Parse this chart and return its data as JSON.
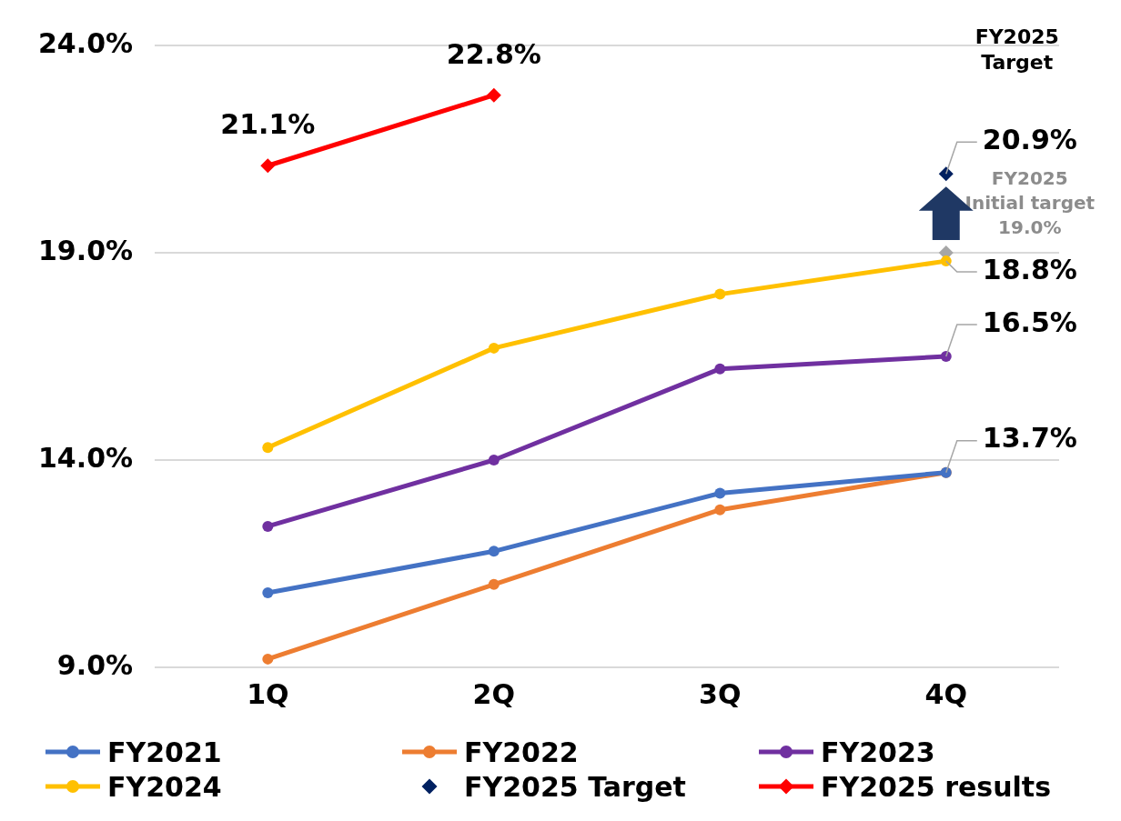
{
  "chart_data": {
    "type": "line",
    "categories": [
      "1Q",
      "2Q",
      "3Q",
      "4Q"
    ],
    "ylim": [
      9,
      24
    ],
    "yticks": [
      {
        "value": 9,
        "label": "9.0%"
      },
      {
        "value": 14,
        "label": "14.0%"
      },
      {
        "value": 19,
        "label": "19.0%"
      },
      {
        "value": 24,
        "label": "24.0%"
      }
    ],
    "grid": "y",
    "legend": "bottom",
    "marker": "circle",
    "line_style": "solid",
    "series": [
      {
        "name": "FY2021",
        "color": "#4472c4",
        "values": [
          10.8,
          11.8,
          13.2,
          13.7
        ],
        "value_labels": [
          null,
          null,
          null,
          null
        ]
      },
      {
        "name": "FY2022",
        "color": "#ed7d31",
        "values": [
          9.2,
          11.0,
          12.8,
          13.7
        ],
        "value_labels": [
          null,
          null,
          null,
          "13.7%"
        ]
      },
      {
        "name": "FY2023",
        "color": "#7030a0",
        "values": [
          12.4,
          14.0,
          16.2,
          16.5
        ],
        "value_labels": [
          null,
          null,
          null,
          "16.5%"
        ]
      },
      {
        "name": "FY2024",
        "color": "#ffc000",
        "values": [
          14.3,
          16.7,
          18.0,
          18.8
        ],
        "value_labels": [
          null,
          null,
          null,
          "18.8%"
        ]
      },
      {
        "name": "FY2025 Target",
        "type": "scatter",
        "marker": "diamond",
        "color": "#002060",
        "values": [
          null,
          null,
          null,
          20.9
        ],
        "value_labels": [
          null,
          null,
          null,
          "20.9%"
        ]
      },
      {
        "name": "FY2025 results",
        "marker": "diamond",
        "color": "#ff0000",
        "values": [
          21.1,
          22.8,
          null,
          null
        ],
        "value_labels": [
          "21.1%",
          "22.8%",
          null,
          null
        ]
      },
      {
        "type": "scatter",
        "marker": "diamond",
        "color": "#a6a6a6",
        "values": [
          null,
          null,
          null,
          19.0
        ],
        "value_labels": [
          null,
          null,
          null,
          null
        ]
      }
    ],
    "annotations": [
      "FY2025\nTarget",
      {
        "text": "FY2025\nInitial target\n19.0%",
        "x": "4Q",
        "y": 19.0
      }
    ]
  }
}
